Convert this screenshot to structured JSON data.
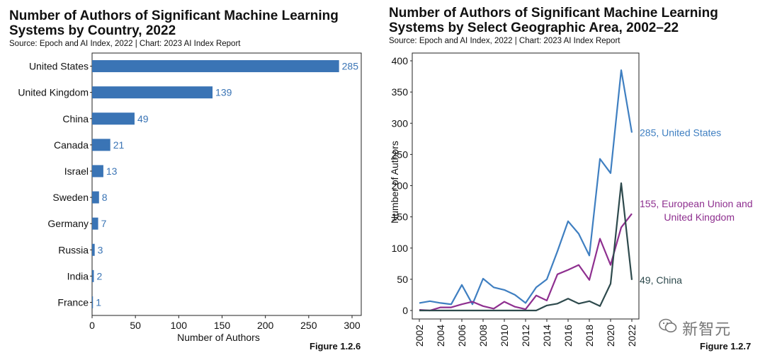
{
  "chart_data": [
    {
      "type": "bar",
      "orientation": "horizontal",
      "title_line1": "Number of Authors of Significant Machine Learning",
      "title_line2": "Systems by Country, 2022",
      "source": "Source: Epoch and AI Index, 2022 | Chart: 2023 AI Index Report",
      "categories": [
        "United States",
        "United Kingdom",
        "China",
        "Canada",
        "Israel",
        "Sweden",
        "Germany",
        "Russia",
        "India",
        "France"
      ],
      "values": [
        285,
        139,
        49,
        21,
        13,
        8,
        7,
        3,
        2,
        1
      ],
      "value_labels": [
        "285",
        "139",
        "49",
        "21",
        "13",
        "8",
        "7",
        "3",
        "2",
        "1"
      ],
      "xlabel": "Number of Authors",
      "xlim": [
        0,
        300
      ],
      "xticks": [
        0,
        50,
        100,
        150,
        200,
        250,
        300
      ],
      "xtick_labels": [
        "0",
        "50",
        "100",
        "150",
        "200",
        "250",
        "300"
      ],
      "bar_color": "#3a74b5",
      "figure_label": "Figure 1.2.6"
    },
    {
      "type": "line",
      "title_line1": "Number of Authors of Significant Machine Learning",
      "title_line2": "Systems by Select Geographic Area, 2002–22",
      "source": "Source: Epoch and AI Index, 2022 | Chart: 2023 AI Index Report",
      "x": [
        2002,
        2003,
        2004,
        2005,
        2006,
        2007,
        2008,
        2009,
        2010,
        2011,
        2012,
        2013,
        2014,
        2015,
        2016,
        2017,
        2018,
        2019,
        2020,
        2021,
        2022
      ],
      "ylabel": "Number of Authors",
      "ylim": [
        0,
        400
      ],
      "yticks": [
        0,
        50,
        100,
        150,
        200,
        250,
        300,
        350,
        400
      ],
      "ytick_labels": [
        "0",
        "50",
        "100",
        "150",
        "200",
        "250",
        "300",
        "350",
        "400"
      ],
      "xticks": [
        2002,
        2004,
        2006,
        2008,
        2010,
        2012,
        2014,
        2016,
        2018,
        2020,
        2022
      ],
      "xtick_labels": [
        "2002",
        "2004",
        "2006",
        "2008",
        "2010",
        "2012",
        "2014",
        "2016",
        "2018",
        "2020",
        "2022"
      ],
      "series": [
        {
          "name": "United States",
          "color": "#3f7fc1",
          "values": [
            12,
            15,
            12,
            10,
            41,
            10,
            51,
            37,
            33,
            25,
            12,
            37,
            50,
            95,
            143,
            123,
            88,
            243,
            220,
            385,
            285
          ],
          "end_label": [
            "285, United States"
          ]
        },
        {
          "name": "European Union and United Kingdom",
          "color": "#8e2f8f",
          "values": [
            1,
            0,
            5,
            5,
            10,
            14,
            7,
            3,
            14,
            6,
            2,
            24,
            16,
            58,
            65,
            73,
            49,
            115,
            73,
            133,
            155
          ],
          "end_label": [
            "155, European Union and",
            "United Kingdom"
          ]
        },
        {
          "name": "China",
          "color": "#2e4a4d",
          "values": [
            0,
            0,
            0,
            0,
            0,
            0,
            0,
            0,
            0,
            0,
            0,
            0,
            8,
            11,
            19,
            11,
            15,
            7,
            43,
            204,
            49
          ],
          "end_label": [
            "49, China"
          ]
        }
      ],
      "figure_label": "Figure 1.2.7"
    }
  ],
  "watermark": {
    "icon": "wechat-icon",
    "text": "新智元"
  }
}
